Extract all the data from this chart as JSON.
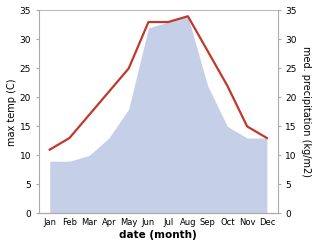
{
  "months": [
    "Jan",
    "Feb",
    "Mar",
    "Apr",
    "May",
    "Jun",
    "Jul",
    "Aug",
    "Sep",
    "Oct",
    "Nov",
    "Dec"
  ],
  "temperature": [
    11,
    13,
    17,
    21,
    25,
    33,
    33,
    34,
    28,
    22,
    15,
    13
  ],
  "precipitation": [
    9,
    9,
    10,
    13,
    18,
    32,
    33,
    34,
    22,
    15,
    13,
    13
  ],
  "temp_color": "#c0392b",
  "precip_color": "#c5cfe8",
  "ylabel_left": "max temp (C)",
  "ylabel_right": "med. precipitation (kg/m2)",
  "xlabel": "date (month)",
  "ylim_left": [
    0,
    35
  ],
  "ylim_right": [
    0,
    35
  ],
  "yticks": [
    0,
    5,
    10,
    15,
    20,
    25,
    30,
    35
  ],
  "background_color": "#ffffff",
  "line_width": 1.6,
  "fill_alpha": 1.0,
  "spine_color": "#aaaaaa",
  "tick_color": "#555555",
  "label_color": "#000000"
}
